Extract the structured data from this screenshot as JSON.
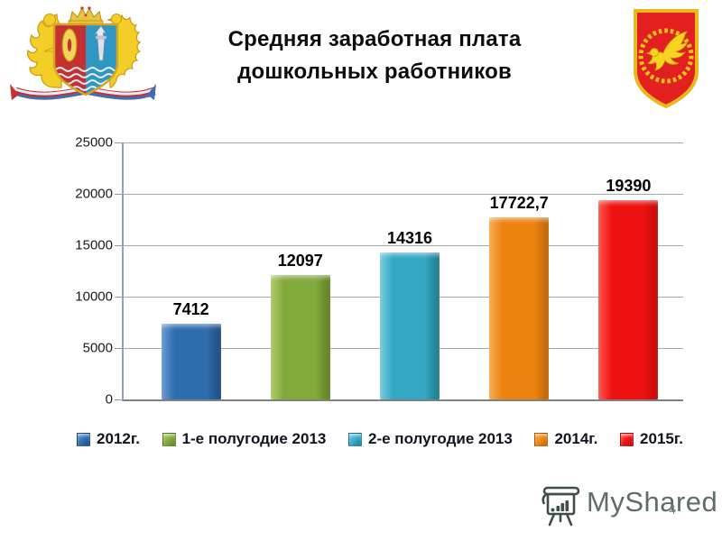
{
  "slide": {
    "title_line1": "Средняя заработная плата",
    "title_line2": "дошкольных работников",
    "page_number": "4"
  },
  "watermark": {
    "brand": "MyShared",
    "icon": "easel-presentation-icon"
  },
  "emblems": {
    "left_alt": "Coat of arms of Ivanovo Oblast",
    "right_alt": "Red shield with golden falcon"
  },
  "chart_data": {
    "type": "bar",
    "title": "Средняя заработная плата дошкольных работников",
    "categories": [
      "2012г.",
      "1-е полугодие 2013",
      "2-е полугодие 2013",
      "2014г.",
      "2015г."
    ],
    "values": [
      7412,
      12097,
      14316,
      17722.7,
      19390
    ],
    "value_labels": [
      "7412",
      "12097",
      "14316",
      "17722,7",
      "19390"
    ],
    "xlabel": "",
    "ylabel": "",
    "ylim": [
      0,
      25000
    ],
    "yticks": [
      25000,
      20000,
      15000,
      10000,
      5000,
      0
    ],
    "ytick_labels": [
      "25000",
      "20000",
      "15000",
      "10000",
      "5000",
      "0"
    ],
    "grid": true,
    "legend_position": "bottom",
    "bar_colors": [
      {
        "name": "blue",
        "base": "#2E6DAD",
        "light": "#6C9BD2",
        "dark": "#1F4C7E"
      },
      {
        "name": "green",
        "base": "#82A93C",
        "light": "#AECB6B",
        "dark": "#5F7F27"
      },
      {
        "name": "teal",
        "base": "#33A7C4",
        "light": "#7BCBDE",
        "dark": "#20798F"
      },
      {
        "name": "orange",
        "base": "#EC8311",
        "light": "#F6AD52",
        "dark": "#BD6509"
      },
      {
        "name": "red",
        "base": "#EF1111",
        "light": "#FB5B52",
        "dark": "#C00B0B"
      }
    ],
    "axis_color": "#94A2B8",
    "gridline_color": "#A8A8A8",
    "baseline_color": "#808080"
  }
}
